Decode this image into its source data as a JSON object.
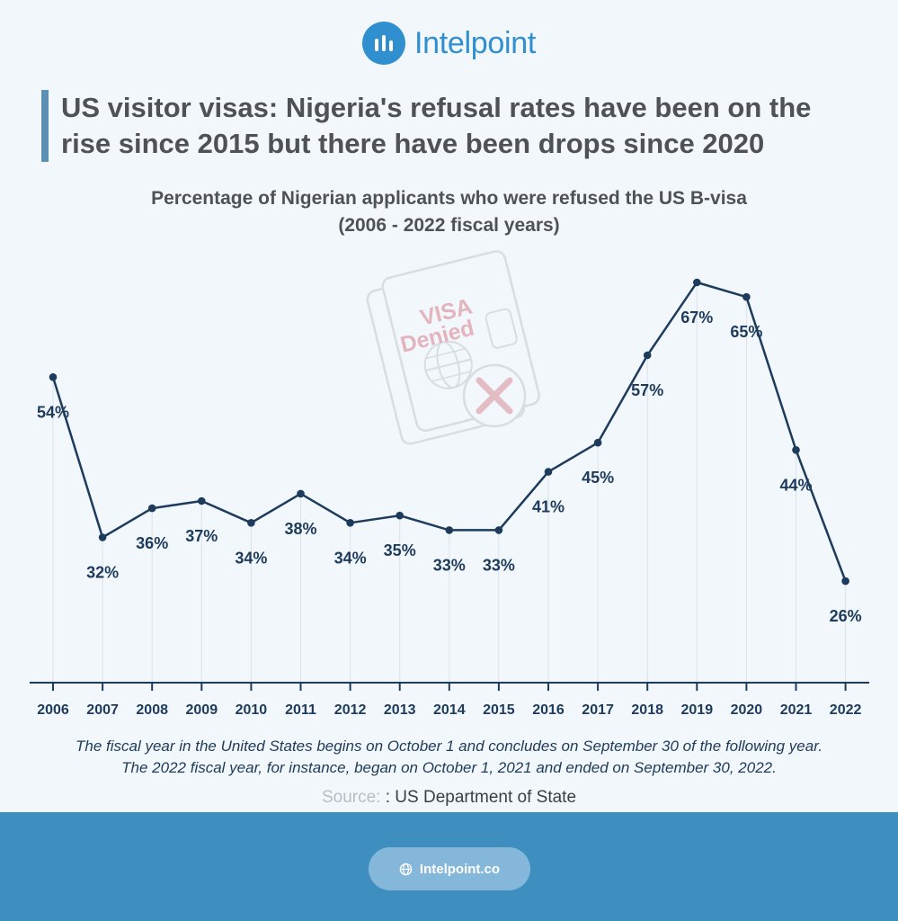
{
  "brand": {
    "name": "Intelpoint",
    "logo_icon": "bar-chart-icon"
  },
  "headline": {
    "line1": "US visitor visas: Nigeria's refusal rates have been on the",
    "line2": "rise since 2015 but there have been drops since 2020"
  },
  "stamp": {
    "line1": "VISA",
    "line2": "Denied"
  },
  "chart_data": {
    "type": "line",
    "title": "Percentage of Nigerian applicants who were refused the US B-visa",
    "subtitle": "(2006 - 2022 fiscal years)",
    "categories": [
      "2006",
      "2007",
      "2008",
      "2009",
      "2010",
      "2011",
      "2012",
      "2013",
      "2014",
      "2015",
      "2016",
      "2017",
      "2018",
      "2019",
      "2020",
      "2021",
      "2022"
    ],
    "values": [
      54,
      32,
      36,
      37,
      34,
      38,
      34,
      35,
      33,
      33,
      41,
      45,
      57,
      67,
      65,
      44,
      26
    ],
    "labels": [
      "54%",
      "32%",
      "36%",
      "37%",
      "34%",
      "38%",
      "34%",
      "35%",
      "33%",
      "33%",
      "41%",
      "45%",
      "57%",
      "67%",
      "65%",
      "44%",
      "26%"
    ],
    "xlabel": "",
    "ylabel": "",
    "grid": "vertical guide lines",
    "legend": "none",
    "line_color": "#1d3b5c"
  },
  "note": {
    "line1": "The fiscal year in the United States begins on October 1 and concludes on September 30 of the following year.",
    "line2": "The 2022 fiscal year, for instance, began on October 1, 2021 and ended on September 30, 2022."
  },
  "source": {
    "label": "Source:",
    "value": ": US Department of State"
  },
  "footer": {
    "website": "Intelpoint.co",
    "icon": "globe-icon"
  }
}
